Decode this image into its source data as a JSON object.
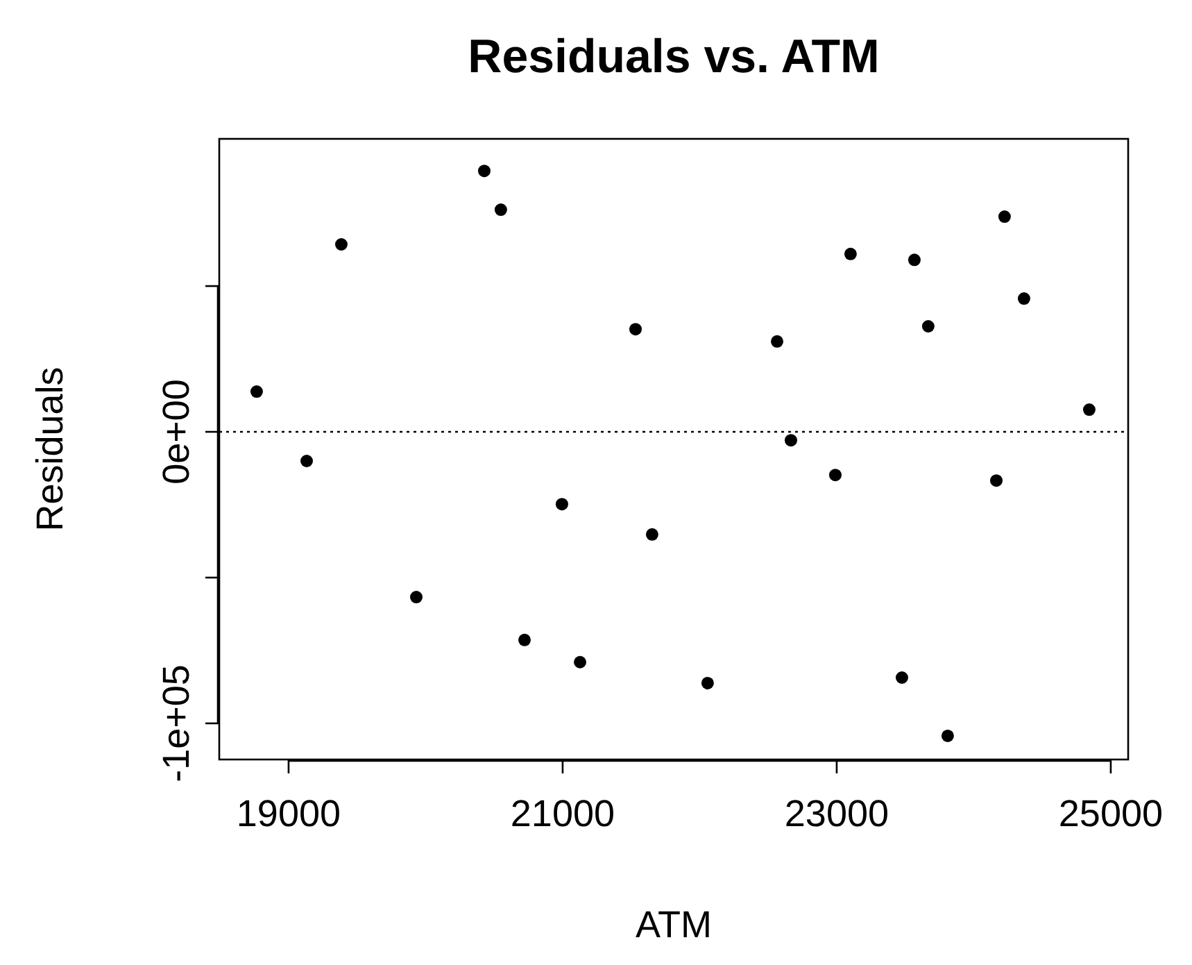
{
  "chart_data": {
    "type": "scatter",
    "title": "Residuals vs. ATM",
    "xlabel": "ATM",
    "ylabel": "Residuals",
    "x": [
      18767,
      19132,
      19385,
      19932,
      20428,
      20549,
      20722,
      20995,
      21127,
      21532,
      21653,
      22058,
      22565,
      22666,
      22990,
      23101,
      23476,
      23567,
      23668,
      23810,
      24165,
      24225,
      24367,
      24843
    ],
    "values": [
      13800,
      -10000,
      64300,
      -56700,
      89500,
      76200,
      -71400,
      -24800,
      -79000,
      35200,
      -35200,
      -86200,
      31000,
      -2900,
      -14800,
      61000,
      -84300,
      59000,
      36200,
      -104300,
      -16700,
      73800,
      45700,
      7600
    ],
    "color": "#000000",
    "marker": "circle",
    "xlim": [
      18494,
      25127
    ],
    "ylim": [
      -112400,
      100500
    ],
    "xticks": [
      19000,
      21000,
      23000,
      25000
    ],
    "yticks": [
      {
        "value": -100000,
        "label": "-1e+05"
      },
      {
        "value": -50000,
        "label": null
      },
      {
        "value": 0,
        "label": "0e+00"
      },
      {
        "value": 50000,
        "label": null
      }
    ],
    "ref_lines": [
      {
        "axis": "y",
        "value": 0,
        "line_style": "dotted",
        "color": "#000000"
      }
    ],
    "grid": false
  }
}
